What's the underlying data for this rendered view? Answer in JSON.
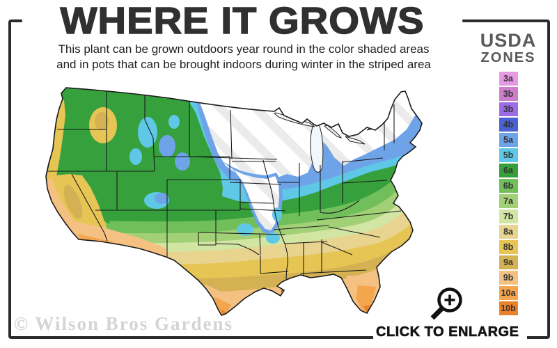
{
  "title": "WHERE IT GROWS",
  "subtitle": {
    "line1": "This plant can be grown outdoors year round in the color shaded areas",
    "line2": "and in pots that can be brought indoors during winter in the striped area"
  },
  "legend": {
    "heading_line1": "USDA",
    "heading_line2": "ZONES",
    "zones": [
      {
        "label": "3a",
        "color": "#e79ae4"
      },
      {
        "label": "3b",
        "color": "#cd7ecb"
      },
      {
        "label": "3b ",
        "color": "#9b6ce4"
      },
      {
        "label": "4b",
        "color": "#4a61d4"
      },
      {
        "label": "5a",
        "color": "#6fa3e8"
      },
      {
        "label": "5b",
        "color": "#5fc8e6"
      },
      {
        "label": "6a",
        "color": "#35a03c"
      },
      {
        "label": "6b",
        "color": "#70bf5a"
      },
      {
        "label": "7a",
        "color": "#a2d077"
      },
      {
        "label": "7b",
        "color": "#d2e5a3"
      },
      {
        "label": "8a",
        "color": "#e8d48e"
      },
      {
        "label": "8b",
        "color": "#e6c554"
      },
      {
        "label": "9a",
        "color": "#d4b254"
      },
      {
        "label": "9b",
        "color": "#f5c183"
      },
      {
        "label": "10a",
        "color": "#f4a64f"
      },
      {
        "label": "10b",
        "color": "#e8832c"
      }
    ]
  },
  "watermark": "© Wilson Bros Gardens",
  "enlarge": {
    "label": "CLICK TO ENLARGE"
  },
  "colors": {
    "frame_border": "#2b2b2b",
    "stripe_gray": "#ebebeb",
    "state_line": "#1b1b1b",
    "lake_fill": "#f2f7fc"
  }
}
